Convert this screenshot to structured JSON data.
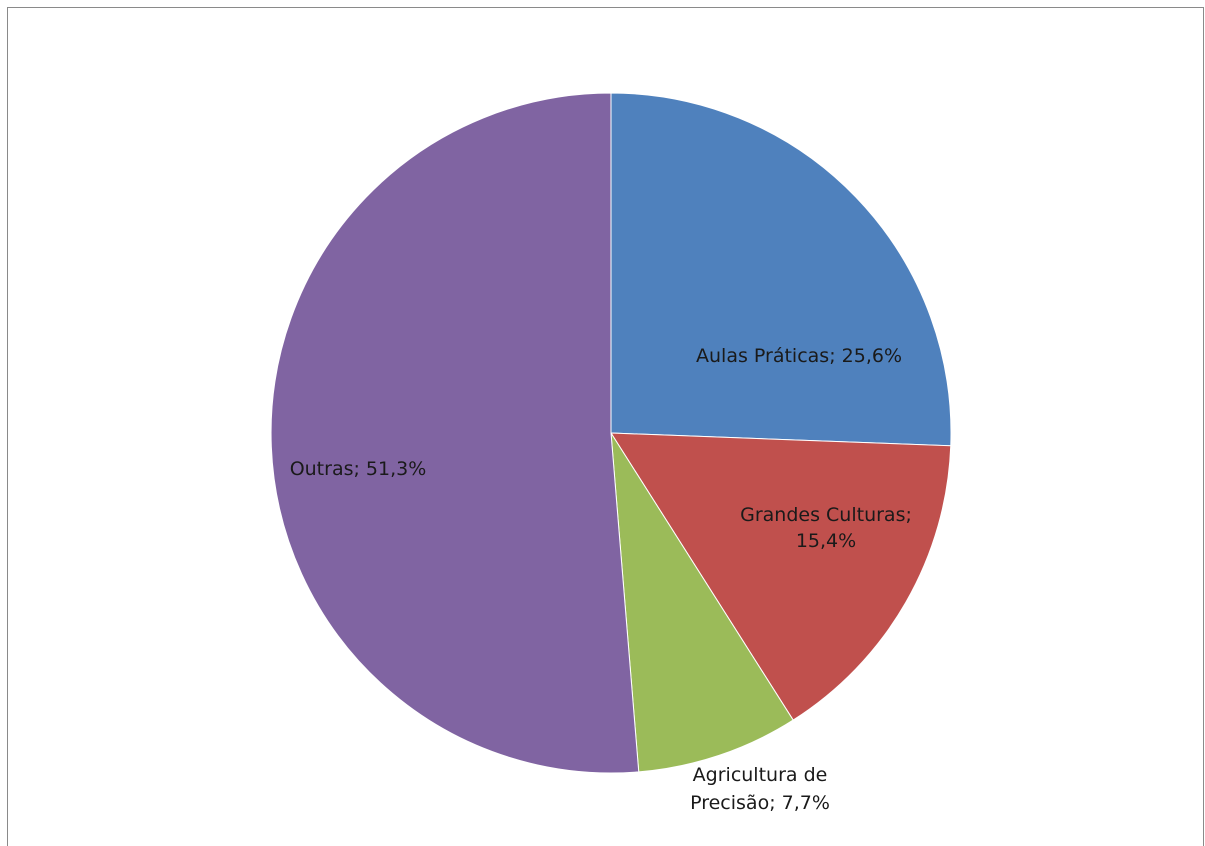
{
  "chart_data": {
    "type": "pie",
    "title": "",
    "slices": [
      {
        "name": "Aulas Práticas",
        "value": 25.6,
        "color": "#4F81BD",
        "label_lines": [
          "Aulas Práticas; 25,6%"
        ]
      },
      {
        "name": "Grandes Culturas",
        "value": 15.4,
        "color": "#C0504D",
        "label_lines": [
          "Grandes Culturas;",
          "15,4%"
        ]
      },
      {
        "name": "Agricultura de Precisão",
        "value": 7.7,
        "color": "#9BBB59",
        "label_lines": [
          "Agricultura de",
          "Precisão; 7,7%"
        ]
      },
      {
        "name": "Outras",
        "value": 51.3,
        "color": "#8064A2",
        "label_lines": [
          "Outras; 51,3%"
        ]
      }
    ],
    "start_angle": "12 o'clock",
    "direction": "clockwise",
    "legend": "none"
  }
}
